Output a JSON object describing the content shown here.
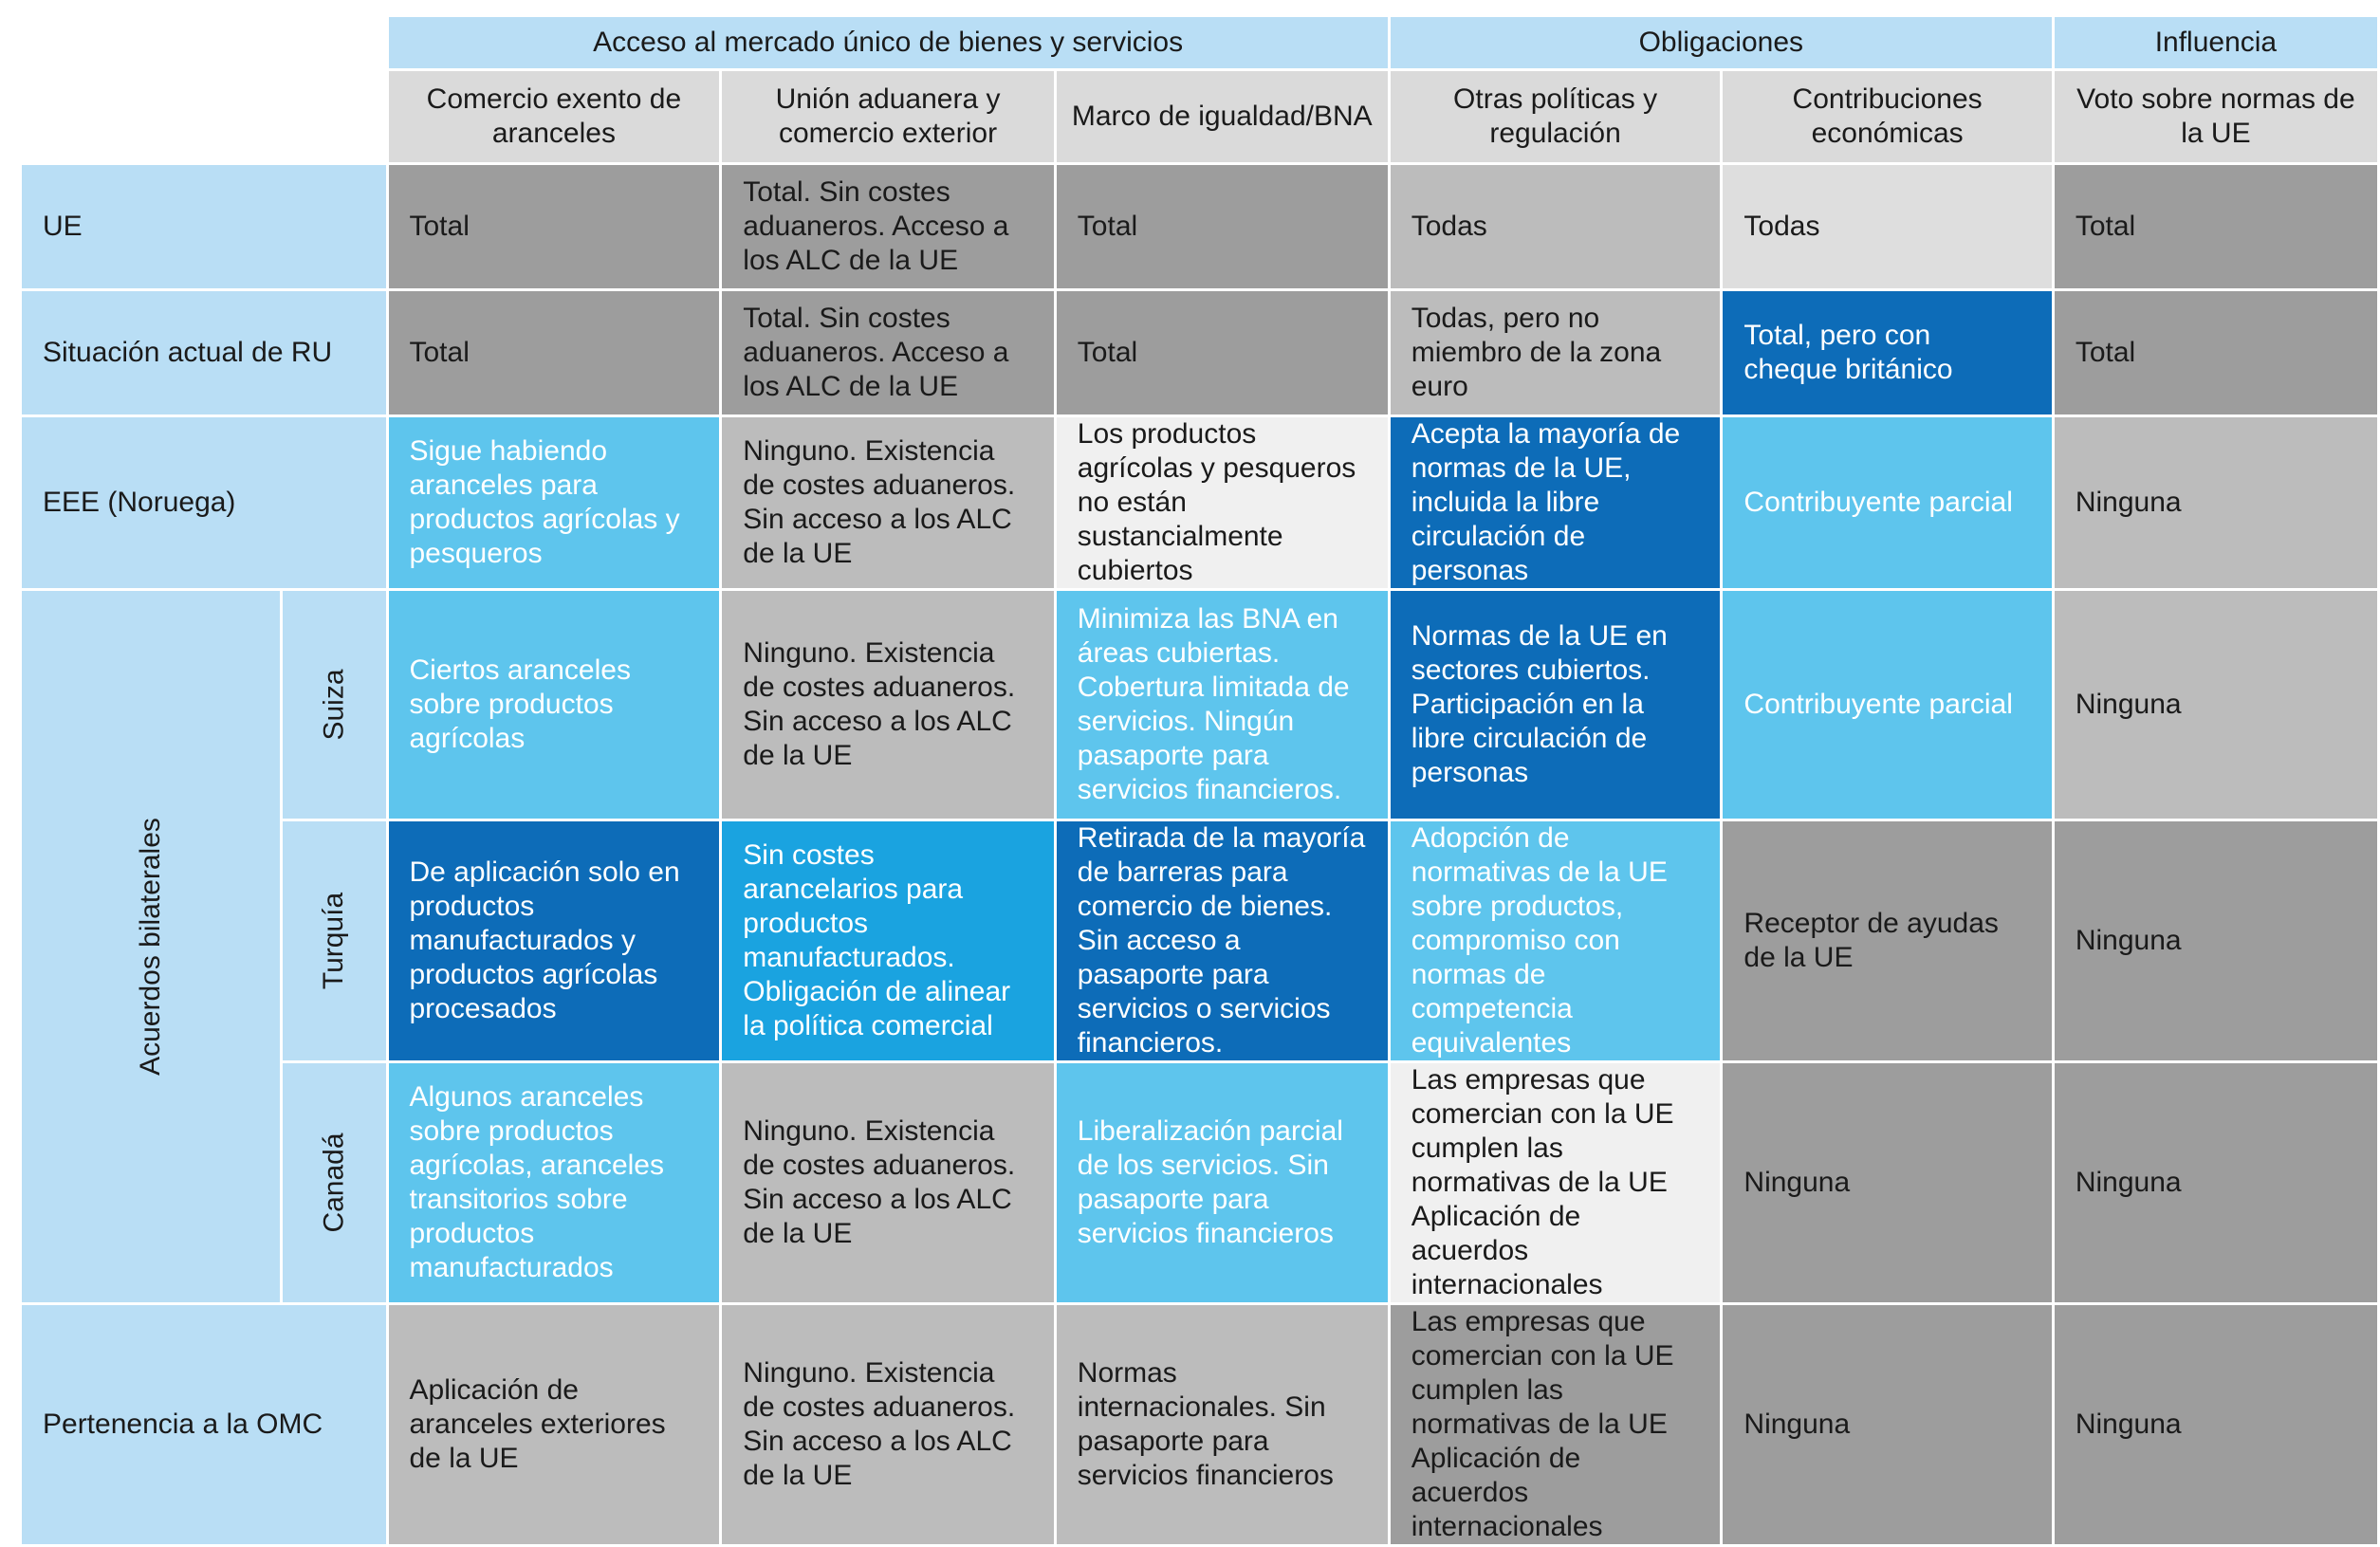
{
  "colors": {
    "header_blue": "#b9def5",
    "header_grey": "#dadada",
    "grey_dark": "#9d9d9d",
    "grey_mid": "#bcbcbc",
    "grey_light": "#dedede",
    "white_cell": "#f0f0f0",
    "light_blue": "#5ec5ed",
    "azure": "#1aa3e0",
    "dark_blue": "#0d6cb8"
  },
  "groups": [
    "Acceso al mercado único de bienes y servicios",
    "Obligaciones",
    "Influencia"
  ],
  "columns": [
    "Comercio exento de aranceles",
    "Unión aduanera y comercio exterior",
    "Marco de igualdad/BNA",
    "Otras políticas y regulación",
    "Contribuciones económicas",
    "Voto sobre normas de la UE"
  ],
  "bilateral_label": "Acuerdos bilaterales",
  "rows": [
    {
      "label": "UE",
      "cells": [
        "Total",
        "Total. Sin costes aduaneros. Acceso a los ALC de la UE",
        "Total",
        "Todas",
        "Todas",
        "Total"
      ]
    },
    {
      "label": "Situación actual de RU",
      "cells": [
        "Total",
        "Total. Sin costes aduaneros. Acceso a los ALC de la UE",
        "Total",
        "Todas, pero no miembro de la zona euro",
        "Total, pero con cheque británico",
        "Total"
      ]
    },
    {
      "label": "EEE (Noruega)",
      "cells": [
        "Sigue habiendo aranceles para productos agrícolas y pesqueros",
        "Ninguno. Existencia de costes aduaneros. Sin acceso a los ALC de la UE",
        "Los productos agrícolas y pesqueros no están sustancialmente cubiertos",
        "Acepta la mayoría de normas de la UE, incluida la libre circulación de personas",
        "Contribuyente parcial",
        "Ninguna"
      ]
    },
    {
      "label": "Suiza",
      "cells": [
        "Ciertos aranceles sobre productos agrícolas",
        "Ninguno. Existencia de costes aduaneros. Sin acceso a los ALC de la UE",
        "Minimiza las BNA en áreas cubiertas. Cobertura limitada de servicios. Ningún pasaporte para servicios financieros.",
        "Normas de la UE en sectores cubiertos. Participación en la libre circulación de personas",
        "Contribuyente parcial",
        "Ninguna"
      ]
    },
    {
      "label": "Turquía",
      "cells": [
        "De aplicación solo en productos manufacturados y productos agrícolas procesados",
        "Sin costes arancelarios para productos manufacturados. Obligación de alinear la política comercial",
        "Retirada de la mayoría de barreras para comercio de bienes. Sin acceso a pasaporte para servicios o servicios financieros.",
        "Adopción de normativas de la UE sobre productos, compromiso con normas de competencia equivalentes",
        "Receptor de ayudas de la UE",
        "Ninguna"
      ]
    },
    {
      "label": "Canadá",
      "cells": [
        "Algunos aranceles sobre productos agrícolas, aranceles transitorios sobre productos manufacturados",
        "Ninguno. Existencia de costes aduaneros. Sin acceso a los ALC de la UE",
        "Liberalización parcial de los servicios. Sin pasaporte para servicios financieros",
        "Las empresas que comercian con la UE cumplen las normativas de la UE Aplicación de acuerdos internacionales",
        "Ninguna",
        "Ninguna"
      ]
    },
    {
      "label": "Pertenencia a la OMC",
      "cells": [
        "Aplicación de aranceles exteriores de la UE",
        "Ninguno. Existencia de costes aduaneros. Sin acceso a los ALC de la UE",
        "Normas internacionales. Sin pasaporte para servicios financieros",
        "Las empresas que comercian con la UE cumplen las normativas de la UE Aplicación de acuerdos internacionales",
        "Ninguna",
        "Ninguna"
      ]
    }
  ]
}
